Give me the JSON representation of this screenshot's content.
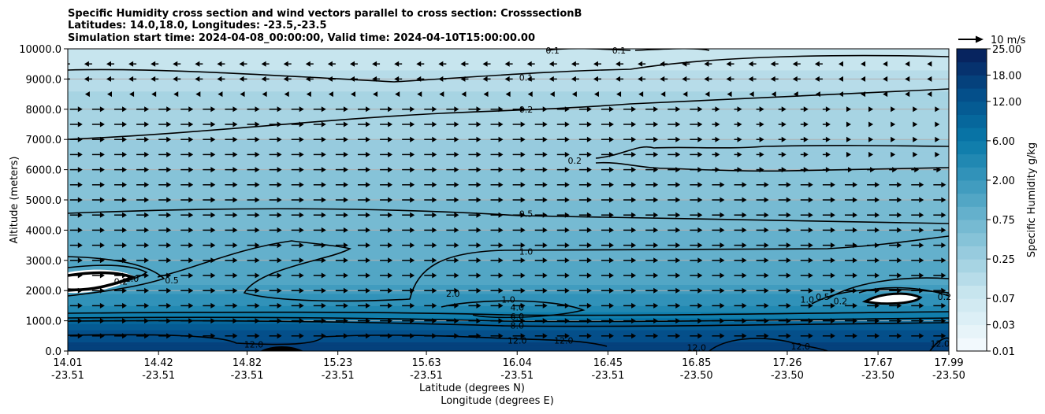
{
  "chart_data": {
    "type": "heatmap",
    "title": [
      "Specific Humidity cross section and wind vectors parallel to cross section: CrosssectionB",
      "Latitudes: 14.0,18.0, Longitudes: -23.5,-23.5",
      "Simulation start time: 2024-04-08_00:00:00, Valid time: 2024-04-10T15:00:00.00"
    ],
    "ylabel": "Altitude (meters)",
    "xlabel": "Latitude (degrees N)",
    "xlabel2": "Longitude (degrees E)",
    "ylim": [
      0,
      10000
    ],
    "y_ticks": [
      "0.0",
      "1000.0",
      "2000.0",
      "3000.0",
      "4000.0",
      "5000.0",
      "6000.0",
      "7000.0",
      "8000.0",
      "9000.0",
      "10000.0"
    ],
    "x_ticks": [
      {
        "lat": "14.01",
        "lon": "-23.51"
      },
      {
        "lat": "14.42",
        "lon": "-23.51"
      },
      {
        "lat": "14.82",
        "lon": "-23.51"
      },
      {
        "lat": "15.23",
        "lon": "-23.51"
      },
      {
        "lat": "15.63",
        "lon": "-23.51"
      },
      {
        "lat": "16.04",
        "lon": "-23.51"
      },
      {
        "lat": "16.45",
        "lon": "-23.51"
      },
      {
        "lat": "16.85",
        "lon": "-23.50"
      },
      {
        "lat": "17.26",
        "lon": "-23.50"
      },
      {
        "lat": "17.67",
        "lon": "-23.50"
      },
      {
        "lat": "17.99",
        "lon": "-23.50"
      }
    ],
    "colorbar": {
      "label": "Specific Humidity g/kg",
      "levels": [
        0.01,
        0.02,
        0.03,
        0.05,
        0.07,
        0.1,
        0.15,
        0.25,
        0.35,
        0.5,
        0.75,
        1.0,
        1.5,
        2.0,
        3.0,
        4.0,
        6.0,
        8.0,
        10.0,
        12.0,
        14.0,
        18.0,
        20.0,
        25.0
      ],
      "tick_labels": [
        "0.01",
        "0.03",
        "0.07",
        "0.25",
        "0.75",
        "2.00",
        "6.00",
        "12.00",
        "18.00",
        "25.00"
      ]
    },
    "quiver_key": "10 m/s",
    "grid": "horizontal",
    "humidity_profile": [
      {
        "altitude": 0,
        "value": 16.0
      },
      {
        "altitude": 500,
        "value": 13.0
      },
      {
        "altitude": 900,
        "value": 11.0
      },
      {
        "altitude": 1100,
        "value": 6.0
      },
      {
        "altitude": 1300,
        "value": 4.0
      },
      {
        "altitude": 1600,
        "value": 2.5
      },
      {
        "altitude": 2200,
        "value": 1.5
      },
      {
        "altitude": 3000,
        "value": 1.0
      },
      {
        "altitude": 4000,
        "value": 0.75
      },
      {
        "altitude": 5000,
        "value": 0.5
      },
      {
        "altitude": 6000,
        "value": 0.35
      },
      {
        "altitude": 7000,
        "value": 0.25
      },
      {
        "altitude": 8000,
        "value": 0.2
      },
      {
        "altitude": 9000,
        "value": 0.12
      },
      {
        "altitude": 10000,
        "value": 0.07
      }
    ],
    "contour_labels": [
      {
        "text": "0.1",
        "lat": 16.08,
        "altitude": 9050
      },
      {
        "text": "0.1",
        "lat": 16.2,
        "altitude": 9950
      },
      {
        "text": "0.1",
        "lat": 16.5,
        "altitude": 9950
      },
      {
        "text": "0.2",
        "lat": 16.08,
        "altitude": 8000
      },
      {
        "text": "0.2",
        "lat": 16.3,
        "altitude": 6300
      },
      {
        "text": "0.5",
        "lat": 16.08,
        "altitude": 4550
      },
      {
        "text": "0.5",
        "lat": 14.48,
        "altitude": 2350
      },
      {
        "text": "1.0",
        "lat": 16.08,
        "altitude": 3300
      },
      {
        "text": "1.0",
        "lat": 14.3,
        "altitude": 2400
      },
      {
        "text": "0.2",
        "lat": 14.25,
        "altitude": 2300
      },
      {
        "text": "2.0",
        "lat": 15.75,
        "altitude": 1900
      },
      {
        "text": "1.0",
        "lat": 16.0,
        "altitude": 1700
      },
      {
        "text": "4.0",
        "lat": 16.04,
        "altitude": 1450
      },
      {
        "text": "6.0",
        "lat": 16.04,
        "altitude": 1150
      },
      {
        "text": "8.0",
        "lat": 16.04,
        "altitude": 850
      },
      {
        "text": "12.0",
        "lat": 16.04,
        "altitude": 350
      },
      {
        "text": "12.0",
        "lat": 14.85,
        "altitude": 220
      },
      {
        "text": "12.0",
        "lat": 16.25,
        "altitude": 350
      },
      {
        "text": "12.0",
        "lat": 16.85,
        "altitude": 120
      },
      {
        "text": "12.0",
        "lat": 17.32,
        "altitude": 150
      },
      {
        "text": "12.0",
        "lat": 17.95,
        "altitude": 250
      },
      {
        "text": "1.0",
        "lat": 17.35,
        "altitude": 1700
      },
      {
        "text": "0.5",
        "lat": 17.42,
        "altitude": 1800
      },
      {
        "text": "0.2",
        "lat": 17.5,
        "altitude": 1650
      },
      {
        "text": "0.2",
        "lat": 17.97,
        "altitude": 1800
      }
    ],
    "wind_rows": [
      {
        "altitude": 9500,
        "direction": "west"
      },
      {
        "altitude": 9000,
        "direction": "west"
      },
      {
        "altitude": 8500,
        "direction": "west"
      },
      {
        "altitude": 8000,
        "direction": "east"
      },
      {
        "altitude": 7500,
        "direction": "east"
      },
      {
        "altitude": 7000,
        "direction": "east"
      },
      {
        "altitude": 6500,
        "direction": "east"
      },
      {
        "altitude": 6000,
        "direction": "east"
      },
      {
        "altitude": 5500,
        "direction": "east"
      },
      {
        "altitude": 5000,
        "direction": "east"
      },
      {
        "altitude": 4500,
        "direction": "east"
      },
      {
        "altitude": 4000,
        "direction": "east"
      },
      {
        "altitude": 3500,
        "direction": "east"
      },
      {
        "altitude": 3000,
        "direction": "east"
      },
      {
        "altitude": 2500,
        "direction": "east"
      },
      {
        "altitude": 2000,
        "direction": "east"
      },
      {
        "altitude": 1500,
        "direction": "east"
      },
      {
        "altitude": 1000,
        "direction": "east"
      },
      {
        "altitude": 500,
        "direction": "east"
      }
    ]
  }
}
